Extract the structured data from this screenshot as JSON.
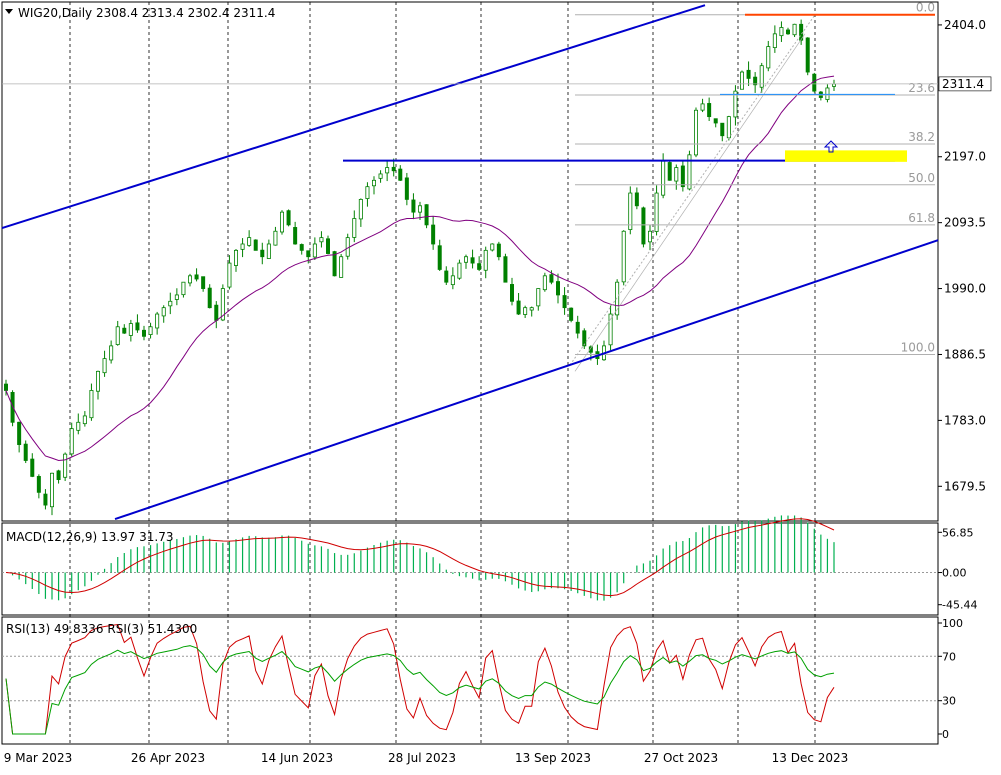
{
  "header": {
    "symbol_info": "WIG20,Daily  2308.4 2313.4 2302.4 2311.4"
  },
  "chart_data": [
    {
      "type": "candlestick",
      "title": "WIG20,Daily  2308.4 2313.4 2302.4 2311.4",
      "ohlc_last": {
        "open": 2308.4,
        "high": 2313.4,
        "low": 2302.4,
        "close": 2311.4
      },
      "ylim": [
        1625,
        2440
      ],
      "y_ticks": [
        1679.5,
        1783.0,
        1886.5,
        1990.0,
        2093.5,
        2197.0,
        2404.0
      ],
      "current_price_label": "2311.4",
      "x_ticks": [
        "9 Mar 2023",
        "26 Apr 2023",
        "14 Jun 2023",
        "28 Jul 2023",
        "13 Sep 2023",
        "27 Oct 2023",
        "13 Dec 2023"
      ],
      "close_series": [
        1830,
        1780,
        1745,
        1720,
        1695,
        1670,
        1650,
        1700,
        1690,
        1730,
        1770,
        1780,
        1790,
        1830,
        1860,
        1880,
        1900,
        1930,
        1920,
        1935,
        1925,
        1915,
        1930,
        1950,
        1960,
        1970,
        1980,
        2000,
        2010,
        2005,
        1990,
        1960,
        1940,
        1990,
        2030,
        2050,
        2060,
        2070,
        2050,
        2040,
        2060,
        2080,
        2110,
        2090,
        2060,
        2050,
        2040,
        2060,
        2070,
        2045,
        2010,
        2040,
        2070,
        2100,
        2130,
        2150,
        2160,
        2170,
        2180,
        2175,
        2160,
        2130,
        2110,
        2120,
        2090,
        2060,
        2020,
        2000,
        2010,
        2030,
        2040,
        2030,
        2020,
        2050,
        2060,
        2040,
        2000,
        1970,
        1950,
        1960,
        1960,
        1990,
        2010,
        2000,
        1980,
        1960,
        1940,
        1920,
        1900,
        1890,
        1880,
        1900,
        1950,
        2000,
        2080,
        2140,
        2120,
        2060,
        2080,
        2140,
        2190,
        2160,
        2180,
        2150,
        2200,
        2270,
        2280,
        2260,
        2250,
        2230,
        2260,
        2300,
        2330,
        2320,
        2310,
        2340,
        2370,
        2390,
        2400,
        2390,
        2405,
        2380,
        2330,
        2300,
        2290,
        2305,
        2311.4
      ],
      "ma_label": "moving average",
      "fibonacci": [
        {
          "label": "0.0",
          "value": 2420
        },
        {
          "label": "23.6",
          "value": 2294
        },
        {
          "label": "38.2",
          "value": 2217
        },
        {
          "label": "50.0",
          "value": 2153
        },
        {
          "label": "61.8",
          "value": 2090
        },
        {
          "label": "100.0",
          "value": 1886.5
        }
      ],
      "levels": {
        "resistance_top": 2420,
        "support_horizontal": 2191,
        "highlight_zone": 2197,
        "short_line": 2295
      },
      "colors": {
        "candle": "#008000",
        "ma": "#800080",
        "channel": "#0000cd",
        "resistance": "#ff4500",
        "highlight": "#ffff00",
        "fib": "#b0b0b0"
      }
    },
    {
      "type": "histogram",
      "title": "MACD(12,26,9) 13.97 31.73",
      "ylim": [
        -60,
        70
      ],
      "y_ticks": [
        {
          "label": "56.85",
          "value": 56.85
        },
        {
          "label": "0.00",
          "value": 0
        },
        {
          "label": "-45.44",
          "value": -45.44
        }
      ],
      "colors": {
        "hist": "#00b050",
        "signal": "#d00000"
      }
    },
    {
      "type": "line",
      "title": "RSI(13) 49.8336  RSI(3) 51.4300",
      "ylim": [
        0,
        100
      ],
      "y_ticks": [
        {
          "label": "100",
          "value": 100
        },
        {
          "label": "70",
          "value": 70
        },
        {
          "label": "30",
          "value": 30
        },
        {
          "label": "0",
          "value": 0
        }
      ],
      "series": [
        {
          "name": "RSI(13)",
          "color": "#00a000"
        },
        {
          "name": "RSI(3)",
          "color": "#d00000"
        }
      ]
    }
  ]
}
